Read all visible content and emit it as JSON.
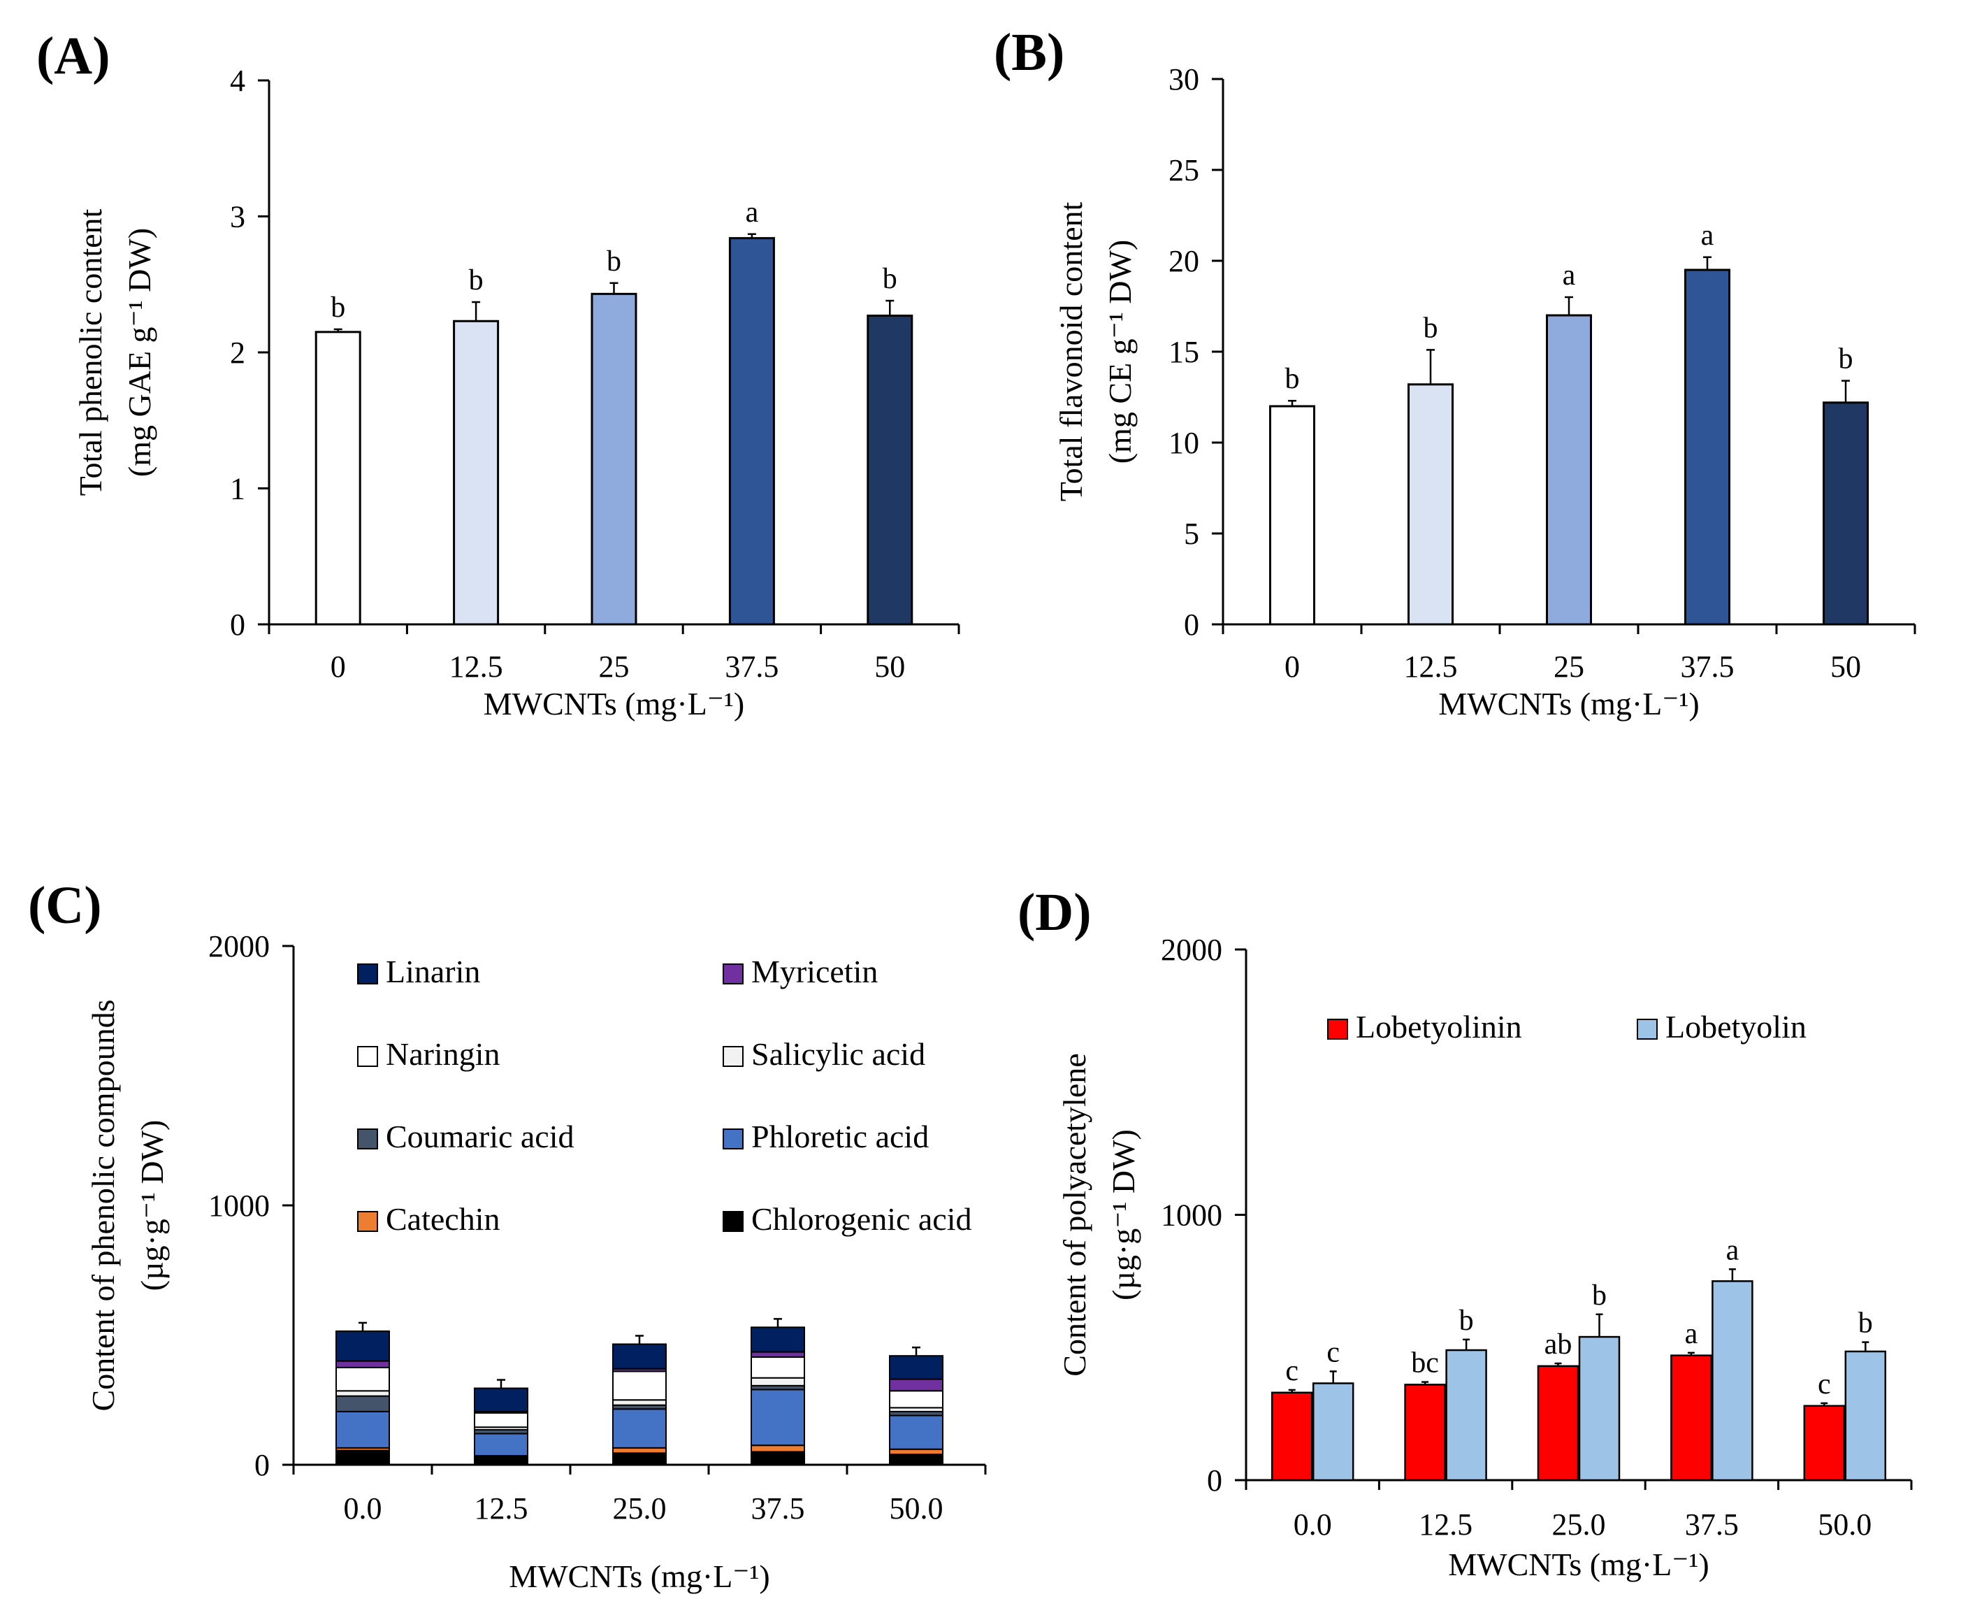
{
  "chart_data": [
    {
      "panel": "(A)",
      "type": "bar",
      "categories": [
        "0",
        "12.5",
        "25",
        "37.5",
        "50"
      ],
      "values": [
        2.15,
        2.23,
        2.43,
        2.84,
        2.27
      ],
      "errors": [
        0.02,
        0.14,
        0.08,
        0.03,
        0.11
      ],
      "significance": [
        "b",
        "b",
        "b",
        "a",
        "b"
      ],
      "colors": [
        "#ffffff",
        "#dae3f3",
        "#8faadc",
        "#2f5597",
        "#203864"
      ],
      "ylim": [
        0,
        4
      ],
      "yticks": [
        "0",
        "1",
        "2",
        "3",
        "4"
      ],
      "xlabel": "MWCNTs (mg·L⁻¹)",
      "ylabel": [
        "Total phenolic content",
        "(mg GAE g⁻¹ DW)"
      ]
    },
    {
      "panel": "(B)",
      "type": "bar",
      "categories": [
        "0",
        "12.5",
        "25",
        "37.5",
        "50"
      ],
      "values": [
        12.0,
        13.2,
        17.0,
        19.5,
        12.2
      ],
      "errors": [
        0.3,
        1.9,
        1.0,
        0.7,
        1.2
      ],
      "significance": [
        "b",
        "b",
        "a",
        "a",
        "b"
      ],
      "colors": [
        "#ffffff",
        "#dae3f3",
        "#8faadc",
        "#2f5597",
        "#203864"
      ],
      "ylim": [
        0,
        30
      ],
      "yticks": [
        "0",
        "5",
        "10",
        "15",
        "20",
        "25",
        "30"
      ],
      "xlabel": "MWCNTs (mg·L⁻¹)",
      "ylabel": [
        "Total flavonoid content",
        "(mg CE g⁻¹ DW)"
      ]
    },
    {
      "panel": "(C)",
      "type": "bar",
      "stacked": true,
      "categories": [
        "0.0",
        "12.5",
        "25.0",
        "37.5",
        "50.0"
      ],
      "series_order_bottom_to_top": [
        "Chlorogenic acid",
        "Catechin",
        "Phloretic acid",
        "Coumaric acid",
        "Salicylic acid",
        "Naringin",
        "Myricetin",
        "Linarin"
      ],
      "series": [
        {
          "name": "Chlorogenic acid",
          "color": "#000000",
          "values": [
            55,
            30,
            45,
            50,
            40
          ]
        },
        {
          "name": "Catechin",
          "color": "#ed7d31",
          "values": [
            10,
            5,
            20,
            25,
            20
          ]
        },
        {
          "name": "Phloretic acid",
          "color": "#4472c4",
          "values": [
            140,
            85,
            150,
            215,
            130
          ]
        },
        {
          "name": "Coumaric acid",
          "color": "#44546a",
          "values": [
            60,
            15,
            15,
            15,
            15
          ]
        },
        {
          "name": "Salicylic acid",
          "color": "#f2f2f2",
          "values": [
            20,
            10,
            20,
            30,
            15
          ]
        },
        {
          "name": "Naringin",
          "color": "#ffffff",
          "values": [
            90,
            55,
            110,
            80,
            65
          ]
        },
        {
          "name": "Myricetin",
          "color": "#7030a0",
          "values": [
            25,
            5,
            10,
            20,
            45
          ]
        },
        {
          "name": "Linarin",
          "color": "#002060",
          "values": [
            115,
            90,
            95,
            95,
            90
          ]
        }
      ],
      "legend": {
        "columns": [
          [
            "Linarin",
            "Naringin",
            "Coumaric acid",
            "Catechin"
          ],
          [
            "Myricetin",
            "Salicylic acid",
            "Phloretic acid",
            "Chlorogenic acid"
          ]
        ],
        "placement": "top"
      },
      "ylim": [
        0,
        2000
      ],
      "yticks": [
        "0",
        "1000",
        "2000"
      ],
      "xlabel": "MWCNTs (mg·L⁻¹)",
      "ylabel": [
        "Content of phenolic compounds",
        "(µg·g⁻¹ DW)"
      ]
    },
    {
      "panel": "(D)",
      "type": "bar",
      "categories": [
        "0.0",
        "12.5",
        "25.0",
        "37.5",
        "50.0"
      ],
      "series": [
        {
          "name": "Lobetyolinin",
          "color": "#ff0000",
          "values": [
            330,
            360,
            430,
            470,
            280
          ],
          "errors": [
            10,
            10,
            10,
            10,
            10
          ],
          "significance": [
            "c",
            "bc",
            "ab",
            "a",
            "c"
          ]
        },
        {
          "name": "Lobetyolin",
          "color": "#9dc3e6",
          "values": [
            365,
            490,
            540,
            750,
            485
          ],
          "errors": [
            45,
            40,
            85,
            45,
            35
          ],
          "significance": [
            "c",
            "b",
            "b",
            "a",
            "b"
          ]
        }
      ],
      "legend": {
        "placement": "top-left"
      },
      "ylim": [
        0,
        2000
      ],
      "yticks": [
        "0",
        "1000",
        "2000"
      ],
      "xlabel": "MWCNTs (mg·L⁻¹)",
      "ylabel": [
        "Content of polyacetylene",
        "(µg·g⁻¹ DW)"
      ]
    }
  ]
}
